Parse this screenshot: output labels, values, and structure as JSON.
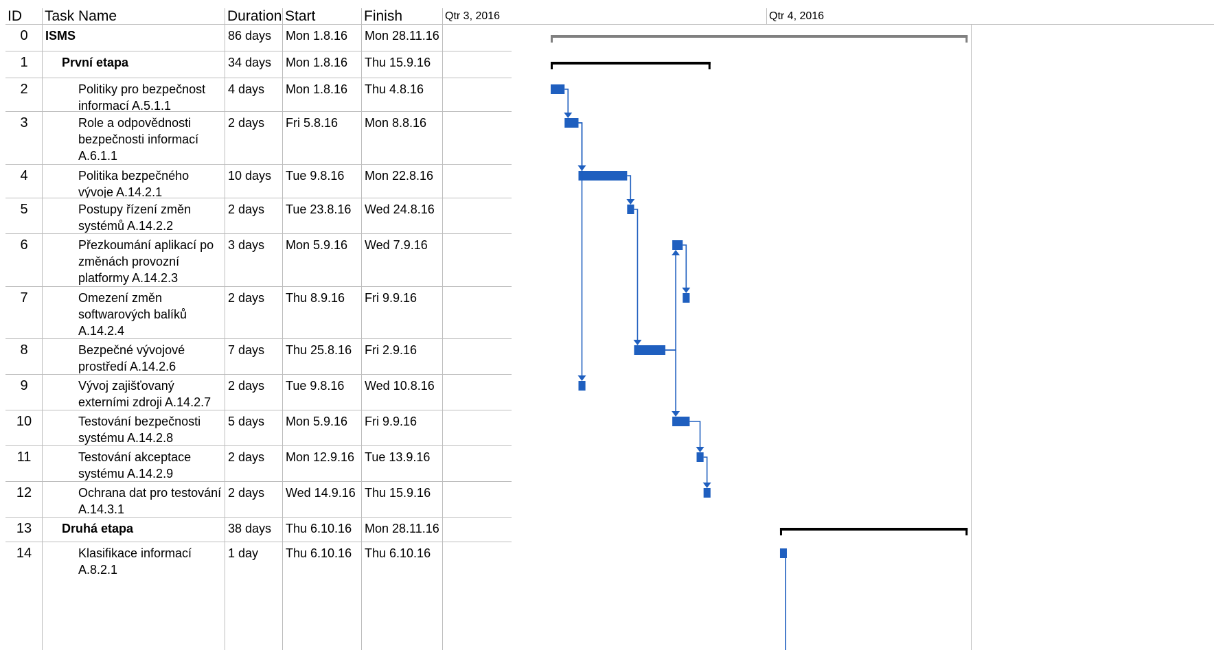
{
  "columns": {
    "id": "ID",
    "name": "Task Name",
    "duration": "Duration",
    "start": "Start",
    "finish": "Finish",
    "qtr3": "Qtr 3, 2016",
    "qtr4": "Qtr 4, 2016"
  },
  "tasks": [
    {
      "id": "0",
      "name": "ISMS",
      "duration": "86 days",
      "start": "Mon 1.8.16",
      "finish": "Mon 28.11.16",
      "level": 0,
      "summary": true
    },
    {
      "id": "1",
      "name": "První etapa",
      "duration": "34 days",
      "start": "Mon 1.8.16",
      "finish": "Thu 15.9.16",
      "level": 1,
      "summary": true
    },
    {
      "id": "2",
      "name": "Politiky pro bezpečnost informací A.5.1.1",
      "duration": "4 days",
      "start": "Mon 1.8.16",
      "finish": "Thu 4.8.16",
      "level": 2
    },
    {
      "id": "3",
      "name": "Role a odpovědnosti bezpečnosti informací A.6.1.1",
      "duration": "2 days",
      "start": "Fri 5.8.16",
      "finish": "Mon 8.8.16",
      "level": 2
    },
    {
      "id": "4",
      "name": "Politika bezpečného vývoje A.14.2.1",
      "duration": "10 days",
      "start": "Tue 9.8.16",
      "finish": "Mon 22.8.16",
      "level": 2
    },
    {
      "id": "5",
      "name": "Postupy řízení změn systémů A.14.2.2",
      "duration": "2 days",
      "start": "Tue 23.8.16",
      "finish": "Wed 24.8.16",
      "level": 2
    },
    {
      "id": "6",
      "name": "Přezkoumání aplikací po změnách provozní platformy A.14.2.3",
      "duration": "3 days",
      "start": "Mon 5.9.16",
      "finish": "Wed 7.9.16",
      "level": 2
    },
    {
      "id": "7",
      "name": "Omezení změn softwarových balíků A.14.2.4",
      "duration": "2 days",
      "start": "Thu 8.9.16",
      "finish": "Fri 9.9.16",
      "level": 2
    },
    {
      "id": "8",
      "name": "Bezpečné vývojové prostředí A.14.2.6",
      "duration": "7 days",
      "start": "Thu 25.8.16",
      "finish": "Fri 2.9.16",
      "level": 2
    },
    {
      "id": "9",
      "name": "Vývoj zajišťovaný externími zdroji A.14.2.7",
      "duration": "2 days",
      "start": "Tue 9.8.16",
      "finish": "Wed 10.8.16",
      "level": 2
    },
    {
      "id": "10",
      "name": "Testování bezpečnosti systému A.14.2.8",
      "duration": "5 days",
      "start": "Mon 5.9.16",
      "finish": "Fri 9.9.16",
      "level": 2
    },
    {
      "id": "11",
      "name": "Testování akceptace systému A.14.2.9",
      "duration": "2 days",
      "start": "Mon 12.9.16",
      "finish": "Tue 13.9.16",
      "level": 2
    },
    {
      "id": "12",
      "name": "Ochrana dat pro testování A.14.3.1",
      "duration": "2 days",
      "start": "Wed 14.9.16",
      "finish": "Thu 15.9.16",
      "level": 2
    },
    {
      "id": "13",
      "name": "Druhá etapa",
      "duration": "38 days",
      "start": "Thu 6.10.16",
      "finish": "Mon 28.11.16",
      "level": 1,
      "summary": true
    },
    {
      "id": "14",
      "name": "Klasifikace informací A.8.2.1",
      "duration": "1 day",
      "start": "Thu 6.10.16",
      "finish": "Thu 6.10.16",
      "level": 2
    }
  ],
  "colors": {
    "task_bar": "#1f5fbf",
    "summary_bar": "#000000",
    "project_summary_bar": "#808080",
    "grid_line": "#bdbdbd"
  }
}
